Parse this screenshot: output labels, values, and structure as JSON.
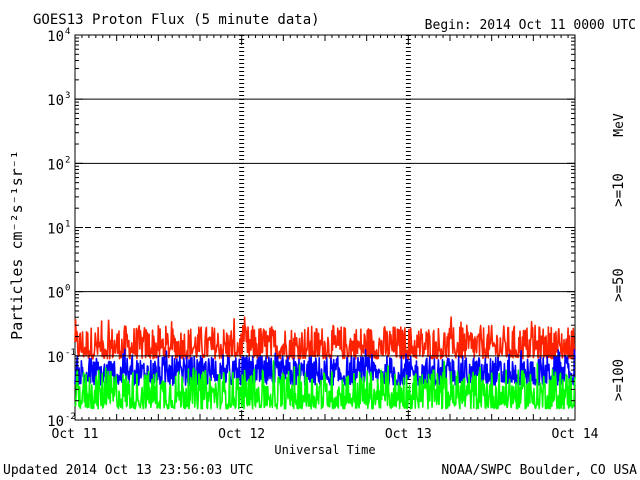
{
  "chart_data": {
    "type": "line",
    "title": "GOES13 Proton Flux (5 minute data)",
    "begin_label": "Begin: 2014 Oct 11 0000 UTC",
    "ylabel": "Particles cm⁻²s⁻¹sr⁻¹",
    "xlabel": "Universal Time",
    "yscale": "log",
    "ylim": [
      0.01,
      10000
    ],
    "y_ticks": [
      {
        "base": "10",
        "exp": "-2",
        "value": 0.01
      },
      {
        "base": "10",
        "exp": "-1",
        "value": 0.1
      },
      {
        "base": "10",
        "exp": "0",
        "value": 1
      },
      {
        "base": "10",
        "exp": "1",
        "value": 10
      },
      {
        "base": "10",
        "exp": "2",
        "value": 100
      },
      {
        "base": "10",
        "exp": "3",
        "value": 1000
      },
      {
        "base": "10",
        "exp": "4",
        "value": 10000
      }
    ],
    "x_ticks": [
      "Oct 11",
      "Oct 12",
      "Oct 13",
      "Oct 14"
    ],
    "x_range_days": [
      0,
      3
    ],
    "grid": {
      "horizontal_solid": [
        1000,
        100,
        1
      ],
      "horizontal_dashed": [
        10
      ]
    },
    "threshold_lines": [
      0.1
    ],
    "energy_unit": "MeV",
    "series": [
      {
        "name": ">=10",
        "color": "#ff2200",
        "level_low": 0.09,
        "level_high": 0.3
      },
      {
        "name": ">=50",
        "color": "#0000ff",
        "level_low": 0.035,
        "level_high": 0.1
      },
      {
        "name": ">=100",
        "color": "#00ff00",
        "level_low": 0.015,
        "level_high": 0.06
      }
    ]
  },
  "footer": {
    "updated": "Updated 2014 Oct 13 23:56:03 UTC",
    "credit": "NOAA/SWPC Boulder, CO USA"
  }
}
